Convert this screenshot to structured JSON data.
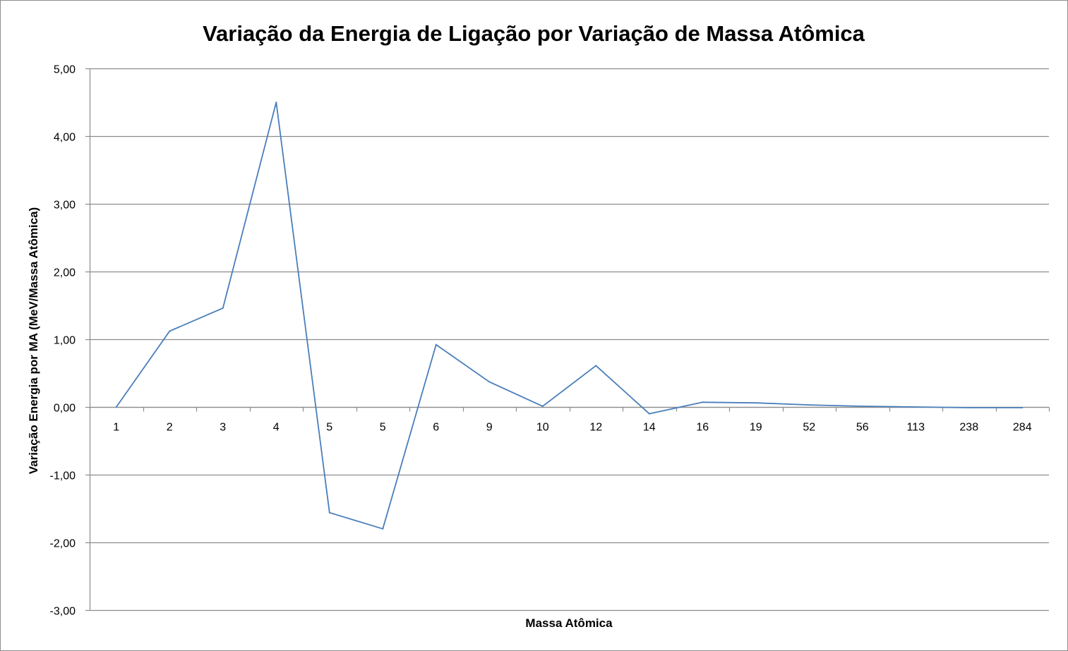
{
  "chart_data": {
    "type": "line",
    "title": "Variação da Energia de Ligação por Variação de Massa Atômica",
    "xlabel": "Massa Atômica",
    "ylabel": "Variação Energia por MA  (MeV/Massa Atômica)",
    "ylim": [
      -3,
      5
    ],
    "y_ticks": [
      "-3,00",
      "-2,00",
      "-1,00",
      "0,00",
      "1,00",
      "2,00",
      "3,00",
      "4,00",
      "5,00"
    ],
    "categories": [
      "1",
      "2",
      "3",
      "4",
      "5",
      "5",
      "6",
      "9",
      "10",
      "12",
      "14",
      "16",
      "19",
      "52",
      "56",
      "113",
      "238",
      "284"
    ],
    "series": [
      {
        "values": [
          0.0,
          1.12,
          1.46,
          4.5,
          -1.56,
          -1.8,
          0.92,
          0.37,
          0.01,
          0.61,
          -0.1,
          0.07,
          0.06,
          0.03,
          0.01,
          0.0,
          -0.01,
          -0.01
        ]
      }
    ],
    "grid": true,
    "legend": "none",
    "line_color": "#4a7ebb",
    "grid_color": "#8c8c8c"
  }
}
